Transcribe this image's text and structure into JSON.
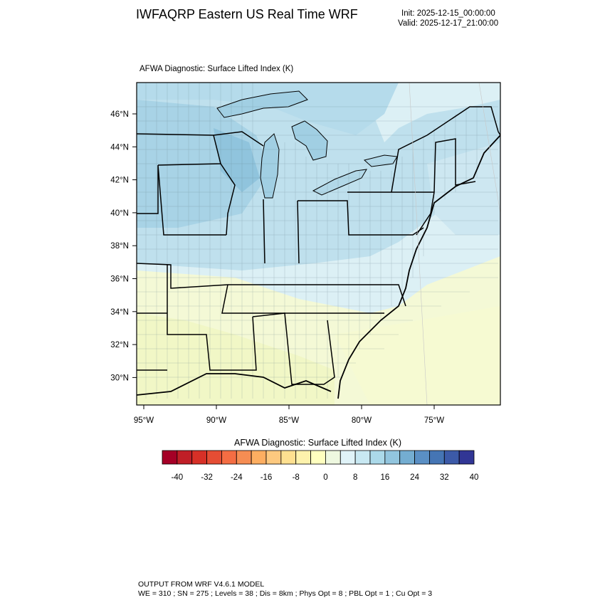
{
  "header": {
    "title": "IWFAQRP Eastern US Real Time WRF",
    "init": "Init: 2025-12-15_00:00:00",
    "valid": "Valid: 2025-12-17_21:00:00"
  },
  "plot": {
    "field_title": "AFWA Diagnostic: Surface Lifted Index   (K)",
    "lat_labels": [
      "46°N",
      "44°N",
      "42°N",
      "40°N",
      "38°N",
      "36°N",
      "34°N",
      "32°N",
      "30°N"
    ],
    "lon_labels": [
      "95°W",
      "90°W",
      "85°W",
      "80°W",
      "75°W"
    ],
    "colors": {
      "ocean_cool": "#d8eef4",
      "land_blue": "#a9d4e6",
      "land_mid": "#b9dcea",
      "land_warm": "#eef7e8",
      "land_yellow": "#f4f9d2",
      "ocean_warm": "#f7fbd8",
      "lake": "#9ccce2",
      "boundary": "#000000"
    }
  },
  "colorbar": {
    "title": "AFWA Diagnostic: Surface Lifted Index  (K)",
    "labels": [
      "-40",
      "-32",
      "-24",
      "-16",
      "-8",
      "0",
      "8",
      "16",
      "24",
      "32",
      "40"
    ],
    "colors": [
      "#a50026",
      "#c01e27",
      "#d73027",
      "#e54d34",
      "#f46d43",
      "#f68d53",
      "#fdae61",
      "#fdc97f",
      "#fee090",
      "#fdf2ac",
      "#ffffbf",
      "#eef8e0",
      "#e0f3f8",
      "#c8e8f2",
      "#abd9e9",
      "#92c5de",
      "#74add1",
      "#5a8fc4",
      "#4575b4",
      "#3c5aa8",
      "#313695"
    ]
  },
  "footer": {
    "line1": "OUTPUT FROM WRF V4.6.1 MODEL",
    "line2": "WE = 310 ; SN = 275 ; Levels = 38 ; Dis = 8km ; Phys Opt = 8 ; PBL Opt = 1 ; Cu Opt = 3"
  }
}
